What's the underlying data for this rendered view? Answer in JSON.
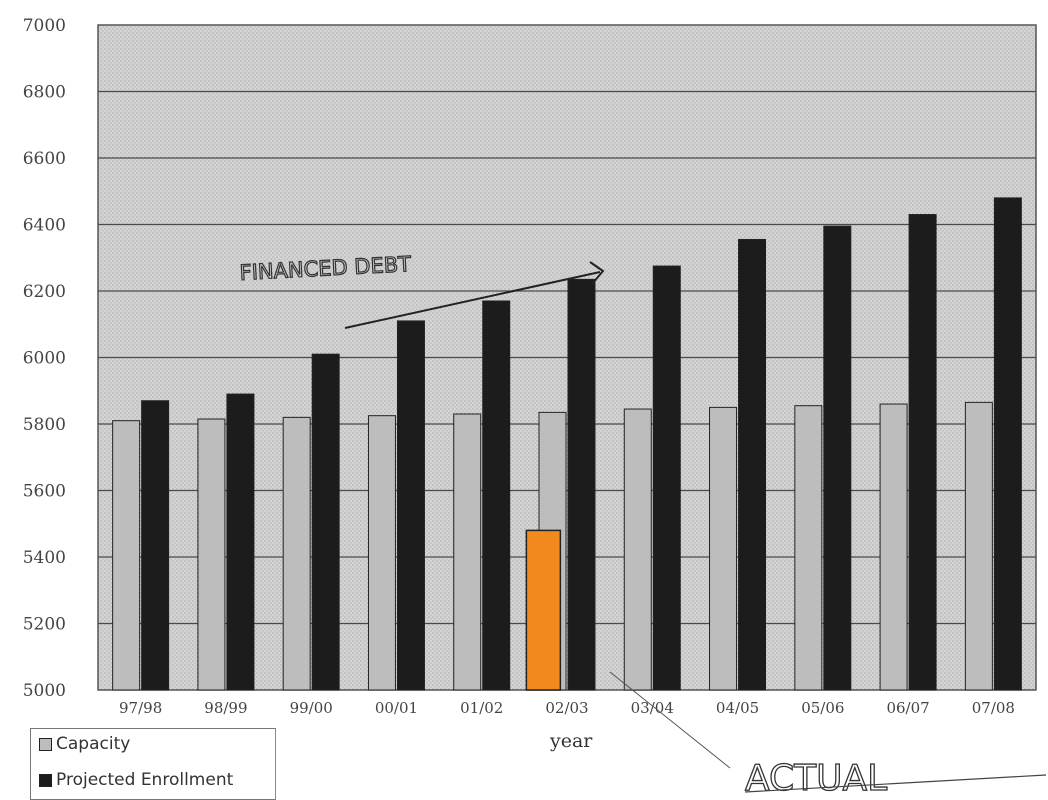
{
  "chart_data": {
    "type": "bar",
    "title": "",
    "xlabel": "year",
    "ylabel": "",
    "ylim": [
      5000,
      7000
    ],
    "yticks": [
      "7000",
      "6800",
      "6600",
      "6400",
      "6200",
      "6000",
      "5800",
      "5600",
      "5400",
      "5200",
      "5000"
    ],
    "categories": [
      "97/98",
      "98/99",
      "99/00",
      "00/01",
      "01/02",
      "02/03",
      "03/04",
      "04/05",
      "05/06",
      "06/07",
      "07/08"
    ],
    "series": [
      {
        "name": "Capacity",
        "color": "#bdbdbd",
        "values": [
          5810,
          5815,
          5820,
          5825,
          5830,
          5835,
          5845,
          5850,
          5855,
          5860,
          5865
        ]
      },
      {
        "name": "Projected Enrollment",
        "color": "#1c1c1c",
        "values": [
          5870,
          5890,
          6010,
          6110,
          6170,
          6235,
          6275,
          6355,
          6395,
          6430,
          6480
        ]
      }
    ],
    "highlight": {
      "category": "02/03",
      "value": 5480,
      "color": "#f08a1c"
    },
    "grid": true,
    "legend_position": "bottom-left"
  },
  "annotations": {
    "financed_debt": "FINANCED DEBT",
    "actual": "ACTUAL"
  }
}
